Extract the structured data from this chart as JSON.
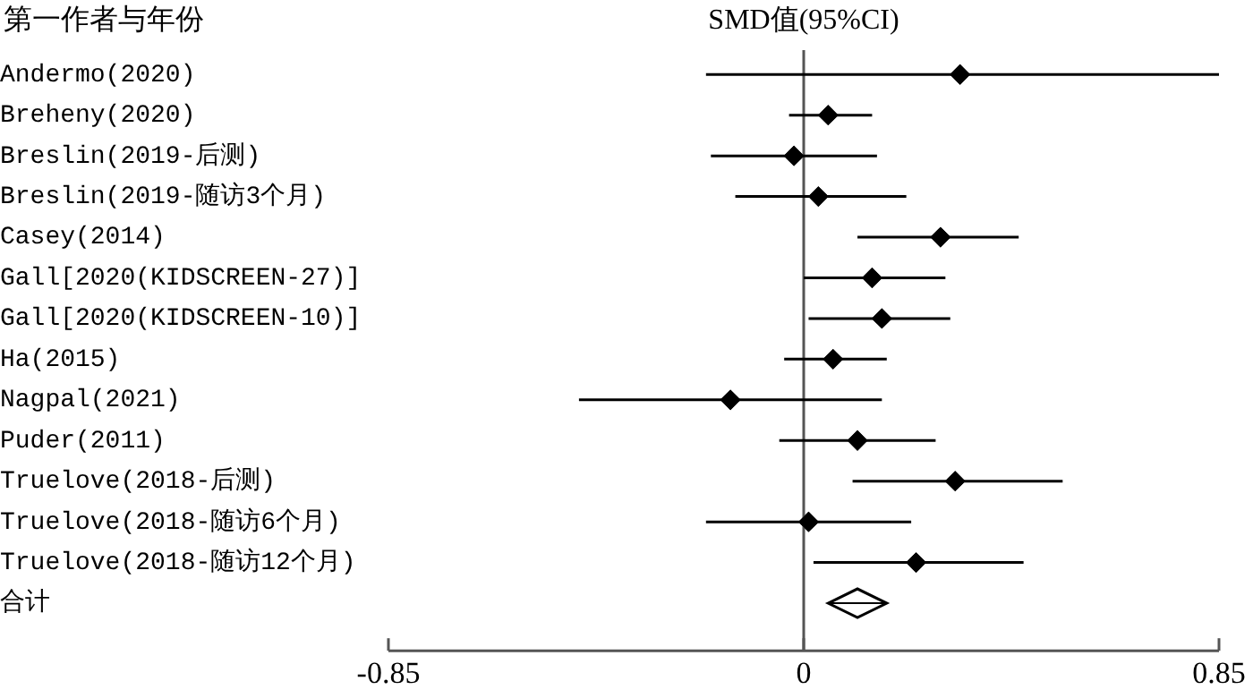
{
  "chart_data": {
    "type": "scatter",
    "orientation": "horizontal",
    "ylabel": "第一作者与年份",
    "xlabel": "SMD值(95%CI)",
    "categories": [
      "Andermo(2020)",
      "Breheny(2020)",
      "Breslin(2019-后测)",
      "Breslin(2019-随访3个月)",
      "Casey(2014)",
      "Gall[2020(KIDSCREEN-27)]",
      "Gall[2020(KIDSCREEN-10)]",
      "Ha(2015)",
      "Nagpal(2021)",
      "Puder(2011)",
      "Truelove(2018-后测)",
      "Truelove(2018-随访6个月)",
      "Truelove(2018-随访12个月)",
      "合计"
    ],
    "series": [
      {
        "color": "#000000",
        "marker": "diamond",
        "values": [
          0.32,
          0.05,
          -0.02,
          0.03,
          0.28,
          0.14,
          0.16,
          0.06,
          -0.15,
          0.11,
          0.31,
          0.01,
          0.23,
          null
        ],
        "errors": [
          [
            -0.2,
            0.85
          ],
          [
            -0.03,
            0.14
          ],
          [
            -0.19,
            0.15
          ],
          [
            -0.14,
            0.21
          ],
          [
            0.11,
            0.44
          ],
          [
            0.0,
            0.29
          ],
          [
            0.01,
            0.3
          ],
          [
            -0.04,
            0.17
          ],
          [
            -0.46,
            0.16
          ],
          [
            -0.05,
            0.27
          ],
          [
            0.1,
            0.53
          ],
          [
            -0.2,
            0.22
          ],
          [
            0.02,
            0.45
          ],
          null
        ]
      },
      {
        "color": "#000000",
        "marker": "diamond",
        "values": [
          null,
          null,
          null,
          null,
          null,
          null,
          null,
          null,
          null,
          null,
          null,
          null,
          null,
          0.11
        ],
        "errors": [
          null,
          null,
          null,
          null,
          null,
          null,
          null,
          null,
          null,
          null,
          null,
          null,
          null,
          [
            0.05,
            0.17
          ]
        ]
      }
    ],
    "xlim": [
      -0.85,
      0.85
    ],
    "xticks": [
      -0.85,
      0,
      0.85
    ],
    "ref_lines": [
      {
        "axis": "x",
        "value": 0
      }
    ],
    "grid": false,
    "legend": false
  }
}
